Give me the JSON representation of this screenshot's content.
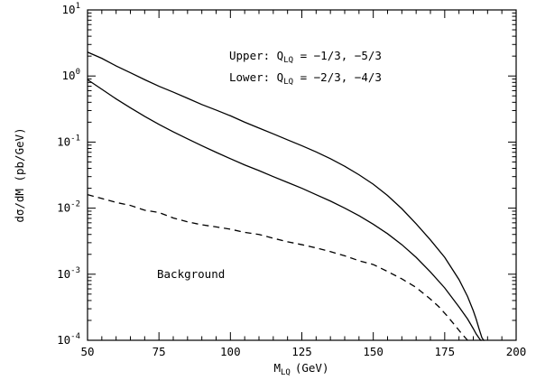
{
  "chart_data": {
    "type": "line",
    "xlabel": {
      "main": "M",
      "sub": "LQ",
      "unit": "(GeV)"
    },
    "ylabel": "dσ/dM (pb/GeV)",
    "xlim": [
      50,
      200
    ],
    "ylim": [
      0.0001,
      10
    ],
    "yscale": "log",
    "xticks": [
      50,
      75,
      100,
      125,
      150,
      175,
      200
    ],
    "yticks": [
      {
        "value": 10,
        "base": "10",
        "exp": "1"
      },
      {
        "value": 1,
        "base": "10",
        "exp": "0"
      },
      {
        "value": 0.1,
        "base": "10",
        "exp": "-1"
      },
      {
        "value": 0.01,
        "base": "10",
        "exp": "-2"
      },
      {
        "value": 0.001,
        "base": "10",
        "exp": "-3"
      },
      {
        "value": 0.0001,
        "base": "10",
        "exp": "-4"
      }
    ],
    "grid": false,
    "annotations": [
      {
        "prefix": "Upper: Q",
        "sub": "LQ",
        "suffix": " = −1/3, −5/3"
      },
      {
        "prefix": "Lower: Q",
        "sub": "LQ",
        "suffix": " = −2/3, −4/3"
      },
      {
        "text": "Background"
      }
    ],
    "series": [
      {
        "style": "solid",
        "x": [
          50,
          55,
          60,
          65,
          70,
          75,
          80,
          85,
          90,
          95,
          100,
          105,
          110,
          115,
          120,
          125,
          130,
          135,
          140,
          145,
          150,
          155,
          160,
          165,
          170,
          175,
          180,
          183,
          185,
          186,
          187,
          188,
          188.6,
          189
        ],
        "y": [
          2.3,
          1.85,
          1.42,
          1.12,
          0.88,
          0.7,
          0.57,
          0.46,
          0.37,
          0.305,
          0.25,
          0.2,
          0.163,
          0.133,
          0.108,
          0.088,
          0.071,
          0.056,
          0.043,
          0.032,
          0.023,
          0.0155,
          0.0098,
          0.0058,
          0.0033,
          0.0018,
          0.00083,
          0.00046,
          0.00028,
          0.00021,
          0.00015,
          0.00011,
          0.0001,
          0.0001
        ]
      },
      {
        "style": "solid",
        "x": [
          50,
          55,
          60,
          65,
          70,
          75,
          80,
          85,
          90,
          95,
          100,
          105,
          110,
          115,
          120,
          125,
          130,
          135,
          140,
          145,
          150,
          155,
          160,
          165,
          170,
          175,
          180,
          183,
          185,
          186,
          187,
          187.6,
          188
        ],
        "y": [
          0.88,
          0.63,
          0.45,
          0.33,
          0.245,
          0.185,
          0.143,
          0.112,
          0.088,
          0.07,
          0.056,
          0.045,
          0.037,
          0.03,
          0.0245,
          0.02,
          0.016,
          0.0128,
          0.01,
          0.0077,
          0.0057,
          0.0041,
          0.0028,
          0.0018,
          0.00108,
          0.00062,
          0.00032,
          0.00021,
          0.00015,
          0.000125,
          0.000108,
          0.0001,
          0.0001
        ]
      },
      {
        "style": "dashed",
        "x": [
          50,
          55,
          60,
          65,
          70,
          75,
          80,
          85,
          90,
          95,
          100,
          105,
          110,
          115,
          120,
          125,
          130,
          135,
          140,
          145,
          150,
          155,
          160,
          165,
          170,
          173,
          176,
          179,
          181,
          183
        ],
        "y": [
          0.016,
          0.014,
          0.0122,
          0.011,
          0.0093,
          0.0086,
          0.0071,
          0.0062,
          0.0056,
          0.0052,
          0.0048,
          0.0043,
          0.004,
          0.0035,
          0.0031,
          0.0028,
          0.0025,
          0.0022,
          0.0019,
          0.0016,
          0.0014,
          0.0011,
          0.00085,
          0.00063,
          0.00042,
          0.00032,
          0.00023,
          0.00016,
          0.000125,
          0.0001
        ]
      }
    ]
  }
}
